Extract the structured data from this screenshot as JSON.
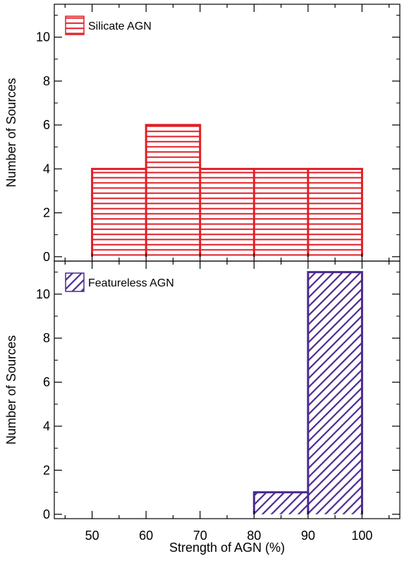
{
  "chart_data": [
    {
      "type": "bar",
      "subtype": "histogram",
      "legend": "Silicate AGN",
      "legend_position": "top-left",
      "color": "#e01f26",
      "hatch": "horizontal",
      "bin_edges": [
        50,
        60,
        70,
        80,
        90,
        100
      ],
      "values": [
        4,
        6,
        4,
        4,
        4
      ],
      "xlim": [
        43,
        107
      ],
      "ylim": [
        -0.2,
        11.5
      ],
      "ylabel": "Number of Sources",
      "yticks": [
        "0",
        "2",
        "4",
        "6",
        "8",
        "10"
      ]
    },
    {
      "type": "bar",
      "subtype": "histogram",
      "legend": "Featureless AGN",
      "legend_position": "top-left",
      "color": "#4b2a8f",
      "hatch": "diagonal",
      "bin_edges": [
        80,
        90,
        100
      ],
      "values": [
        1,
        11
      ],
      "xlim": [
        43,
        107
      ],
      "ylim": [
        -0.2,
        11.5
      ],
      "ylabel": "Number of Sources",
      "yticks": [
        "0",
        "2",
        "4",
        "6",
        "8",
        "10"
      ]
    }
  ],
  "xlabel": "Strength of AGN (%)",
  "xticks": [
    "50",
    "60",
    "70",
    "80",
    "90",
    "100"
  ]
}
